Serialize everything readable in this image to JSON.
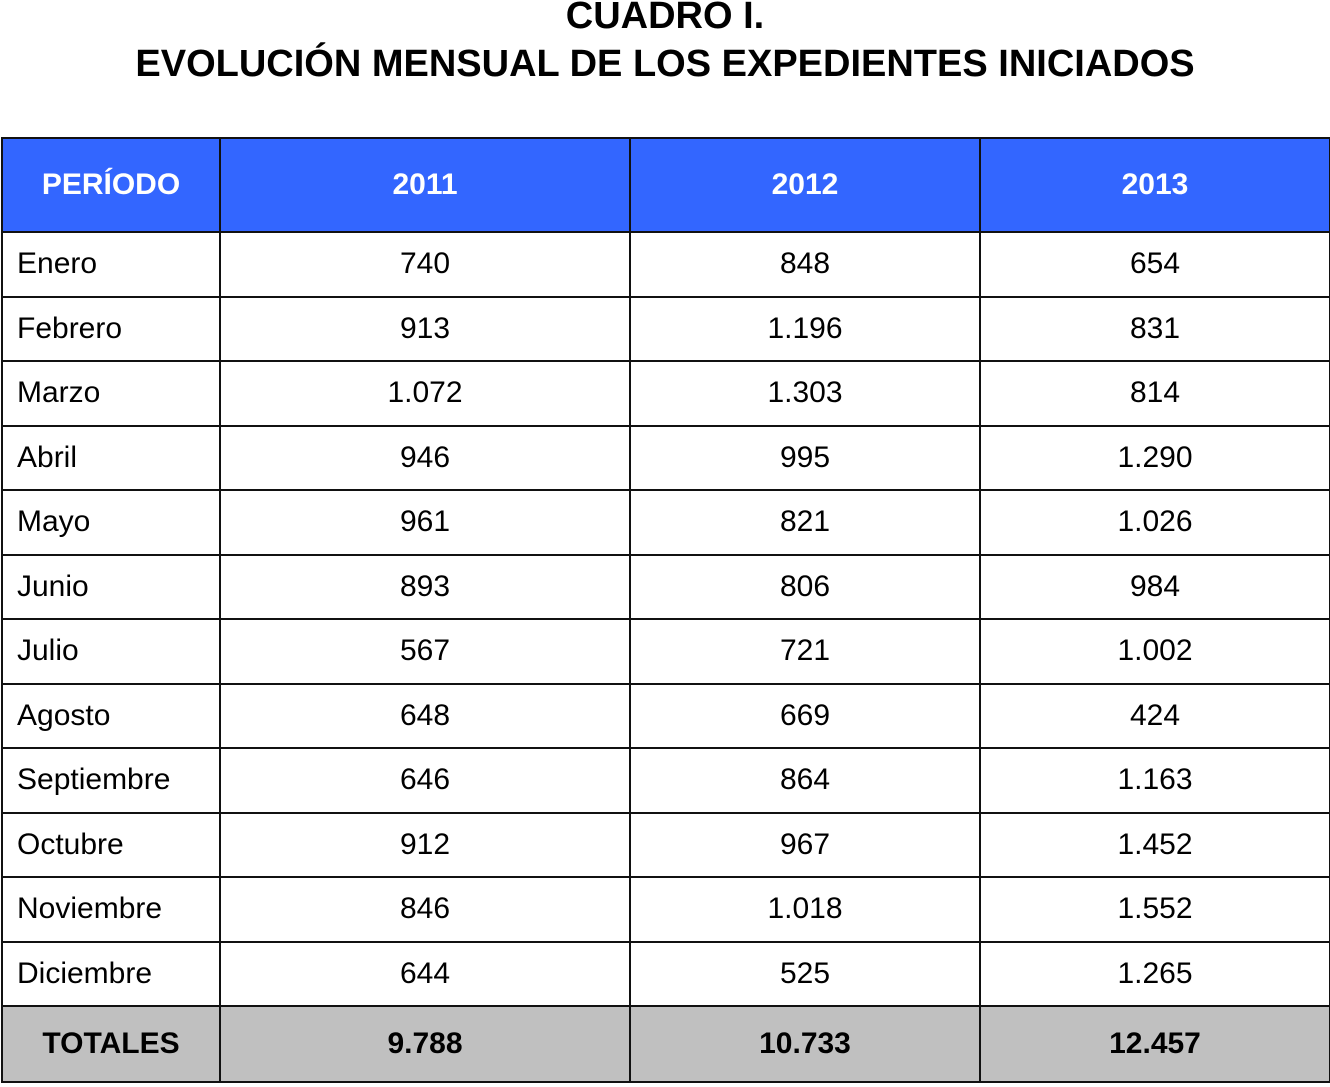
{
  "title": {
    "line1": "CUADRO I.",
    "line2": "EVOLUCIÓN MENSUAL DE LOS EXPEDIENTES INICIADOS"
  },
  "colors": {
    "header_background": "#3366ff",
    "header_text": "#ffffff",
    "totals_background": "#c0c0c0",
    "border": "#111111"
  },
  "table": {
    "headers": [
      "PERÍODO",
      "2011",
      "2012",
      "2013"
    ],
    "rows": [
      {
        "period": "Enero",
        "y2011": "740",
        "y2012": "848",
        "y2013": "654"
      },
      {
        "period": "Febrero",
        "y2011": "913",
        "y2012": "1.196",
        "y2013": "831"
      },
      {
        "period": "Marzo",
        "y2011": "1.072",
        "y2012": "1.303",
        "y2013": "814"
      },
      {
        "period": "Abril",
        "y2011": "946",
        "y2012": "995",
        "y2013": "1.290"
      },
      {
        "period": "Mayo",
        "y2011": "961",
        "y2012": "821",
        "y2013": "1.026"
      },
      {
        "period": "Junio",
        "y2011": "893",
        "y2012": "806",
        "y2013": "984"
      },
      {
        "period": "Julio",
        "y2011": "567",
        "y2012": "721",
        "y2013": "1.002"
      },
      {
        "period": "Agosto",
        "y2011": "648",
        "y2012": "669",
        "y2013": "424"
      },
      {
        "period": "Septiembre",
        "y2011": "646",
        "y2012": "864",
        "y2013": "1.163"
      },
      {
        "period": "Octubre",
        "y2011": "912",
        "y2012": "967",
        "y2013": "1.452"
      },
      {
        "period": "Noviembre",
        "y2011": "846",
        "y2012": "1.018",
        "y2013": "1.552"
      },
      {
        "period": "Diciembre",
        "y2011": "644",
        "y2012": "525",
        "y2013": "1.265"
      }
    ],
    "totals": {
      "label": "TOTALES",
      "y2011": "9.788",
      "y2012": "10.733",
      "y2013": "12.457"
    }
  }
}
